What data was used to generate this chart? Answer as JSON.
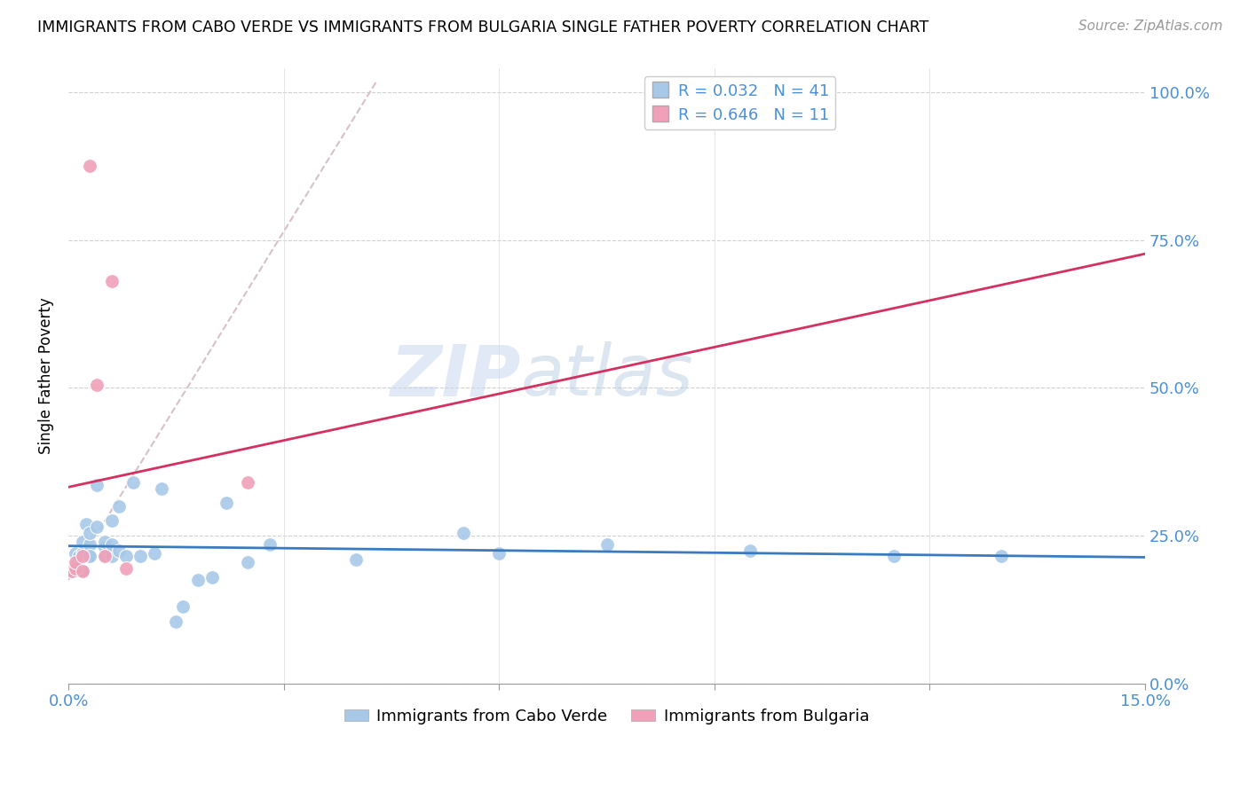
{
  "title": "IMMIGRANTS FROM CABO VERDE VS IMMIGRANTS FROM BULGARIA SINGLE FATHER POVERTY CORRELATION CHART",
  "source": "Source: ZipAtlas.com",
  "ylabel": "Single Father Poverty",
  "legend_label1": "Immigrants from Cabo Verde",
  "legend_label2": "Immigrants from Bulgaria",
  "R1": 0.032,
  "N1": 41,
  "R2": 0.646,
  "N2": 11,
  "xlim": [
    0.0,
    0.15
  ],
  "ylim": [
    0.0,
    1.04
  ],
  "yticks": [
    0.0,
    0.25,
    0.5,
    0.75,
    1.0
  ],
  "ytick_labels": [
    "0.0%",
    "25.0%",
    "50.0%",
    "75.0%",
    "100.0%"
  ],
  "xticks": [
    0.0,
    0.03,
    0.06,
    0.09,
    0.12,
    0.15
  ],
  "xtick_labels": [
    "0.0%",
    "",
    "",
    "",
    "",
    "15.0%"
  ],
  "color_cabo_verde": "#a8c8e8",
  "color_bulgaria": "#f0a0b8",
  "color_line1": "#3a7abf",
  "color_line2": "#d43060",
  "color_dashed": "#d8c0c8",
  "watermark_zip": "ZIP",
  "watermark_atlas": "atlas",
  "cabo_verde_x": [
    0.0005,
    0.001,
    0.001,
    0.0015,
    0.002,
    0.002,
    0.002,
    0.0025,
    0.003,
    0.003,
    0.003,
    0.003,
    0.004,
    0.004,
    0.005,
    0.005,
    0.005,
    0.006,
    0.006,
    0.006,
    0.007,
    0.007,
    0.008,
    0.009,
    0.01,
    0.012,
    0.013,
    0.015,
    0.016,
    0.018,
    0.02,
    0.022,
    0.025,
    0.028,
    0.04,
    0.055,
    0.06,
    0.075,
    0.095,
    0.115,
    0.13
  ],
  "cabo_verde_y": [
    0.19,
    0.2,
    0.22,
    0.215,
    0.19,
    0.22,
    0.24,
    0.27,
    0.215,
    0.235,
    0.255,
    0.215,
    0.265,
    0.335,
    0.215,
    0.23,
    0.24,
    0.215,
    0.235,
    0.275,
    0.225,
    0.3,
    0.215,
    0.34,
    0.215,
    0.22,
    0.33,
    0.105,
    0.13,
    0.175,
    0.18,
    0.305,
    0.205,
    0.235,
    0.21,
    0.255,
    0.22,
    0.235,
    0.225,
    0.215,
    0.215
  ],
  "bulgaria_x": [
    0.0005,
    0.001,
    0.001,
    0.002,
    0.002,
    0.003,
    0.004,
    0.005,
    0.006,
    0.008,
    0.025
  ],
  "bulgaria_y": [
    0.19,
    0.195,
    0.205,
    0.19,
    0.215,
    0.875,
    0.505,
    0.215,
    0.68,
    0.195,
    0.34
  ]
}
